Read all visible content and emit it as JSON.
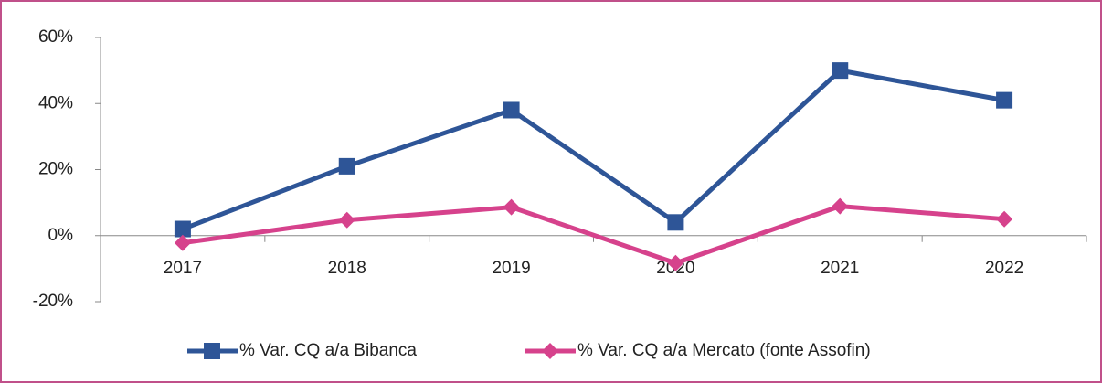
{
  "chart_data": {
    "type": "line",
    "categories": [
      "2017",
      "2018",
      "2019",
      "2020",
      "2021",
      "2022"
    ],
    "series": [
      {
        "name": "% Var. CQ a/a Bibanca",
        "color": "#2e5597",
        "marker": "square",
        "values": [
          2,
          21,
          38,
          4,
          50,
          41
        ]
      },
      {
        "name": "% Var. CQ a/a Mercato (fonte Assofin)",
        "color": "#d6428c",
        "marker": "diamond",
        "values": [
          -2.2,
          4.7,
          8.6,
          -8.3,
          8.9,
          5
        ]
      }
    ],
    "ylim": [
      -20,
      60
    ],
    "yticks": [
      {
        "value": -20,
        "label": "-20%"
      },
      {
        "value": 0,
        "label": "0%"
      },
      {
        "value": 20,
        "label": "20%"
      },
      {
        "value": 40,
        "label": "40%"
      },
      {
        "value": 60,
        "label": "60%"
      }
    ],
    "grid": false,
    "legend": "bottom"
  }
}
